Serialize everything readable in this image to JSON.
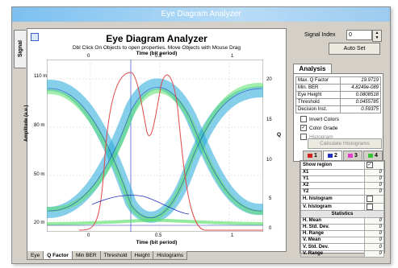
{
  "window": {
    "title": "Eye Diagram Analyzer"
  },
  "side_tab": {
    "label": "Signal"
  },
  "plot": {
    "title": "Eye Diagram Analyzer",
    "subtitle": "Dbl Click On Objects to open properties.  Move Objects with Mouse Drag",
    "x_top_label": "Time (bit period)",
    "x_bottom_label": "Time (bit period)",
    "y_left_label": "Amplitude (a.u.)",
    "y_right_label": "Q",
    "x_ticks_top": [
      "0",
      "0.5",
      "1"
    ],
    "x_ticks_bottom": [
      "0",
      "0.5",
      "1"
    ],
    "y_ticks_left": [
      "110 m",
      "80 m",
      "50 m",
      "20 m"
    ],
    "y_ticks_right": [
      "20",
      "15",
      "10",
      "5",
      "0"
    ]
  },
  "bottom_tabs": [
    "Eye",
    "Q Factor",
    "Min BER",
    "Threshold",
    "Height",
    "Histograms"
  ],
  "bottom_tab_active": "Q Factor",
  "signal_index": {
    "label": "Signal Index",
    "value": "0"
  },
  "auto_set_label": "Auto Set",
  "analysis": {
    "tab_label": "Analysis",
    "rows": [
      {
        "label": "Max. Q Factor",
        "value": "19.9719"
      },
      {
        "label": "Min. BER",
        "value": "4.8249e-089"
      },
      {
        "label": "Eye Height",
        "value": "0.0808518"
      },
      {
        "label": "Threshold",
        "value": "0.0455785"
      },
      {
        "label": "Decision Inst.",
        "value": "0.59375"
      }
    ]
  },
  "options": {
    "invert_colors": {
      "label": "Invert Colors",
      "checked": false
    },
    "color_grade": {
      "label": "Color Grade",
      "checked": true
    },
    "histogram": {
      "label": "Histogram",
      "checked": false
    },
    "calculate_histograms": "Calculate Histograms"
  },
  "channels": [
    {
      "label": "1",
      "color": "#d32020"
    },
    {
      "label": "2",
      "color": "#1f2fbf"
    },
    {
      "label": "3",
      "color": "#e03ad0"
    },
    {
      "label": "4",
      "color": "#38c438"
    }
  ],
  "active_channel": "2",
  "grid": {
    "show_region": {
      "label": "Show region",
      "checked": true
    },
    "coords": [
      {
        "label": "X1",
        "value": "0"
      },
      {
        "label": "Y1",
        "value": "0"
      },
      {
        "label": "X2",
        "value": "0"
      },
      {
        "label": "Y2",
        "value": "0"
      }
    ],
    "h_histogram": {
      "label": "H. histogram",
      "checked": false
    },
    "v_histogram": {
      "label": "V. histogram",
      "checked": false
    },
    "statistics_header": "Statistics",
    "stats": [
      {
        "label": "H. Mean",
        "value": "0"
      },
      {
        "label": "H. Std. Dev.",
        "value": "0"
      },
      {
        "label": "H. Range",
        "value": "0"
      },
      {
        "label": "V. Mean",
        "value": "0"
      },
      {
        "label": "V. Std. Dev.",
        "value": "0"
      },
      {
        "label": "V. Range",
        "value": "0"
      }
    ]
  },
  "colors": {
    "eye_trace": "#22a8d8",
    "eye_trace_alt": "#5ce06a",
    "q_curve": "#e04848",
    "window_bg": "#d4d0c8"
  }
}
